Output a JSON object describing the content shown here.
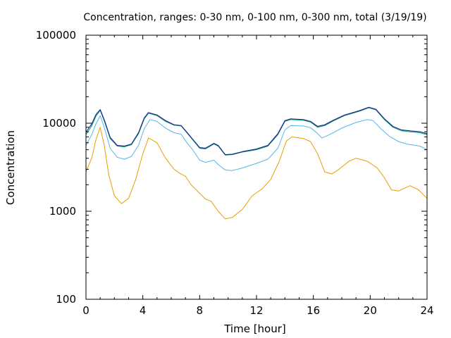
{
  "chart_data": {
    "type": "line",
    "title": "Concentration, ranges: 0-30 nm, 0-100 nm, 0-300 nm, total (3/19/19)",
    "xlabel": "Time [hour]",
    "ylabel": "Concentration",
    "xlim": [
      0,
      24
    ],
    "ylim": [
      100,
      100000
    ],
    "yscale": "log",
    "grid": false,
    "x_ticks": [
      "0",
      "4",
      "8",
      "12",
      "16",
      "20",
      "24"
    ],
    "y_ticks": [
      "100",
      "1000",
      "10000",
      "100000"
    ],
    "series": [
      {
        "color": "#e69f00",
        "points": [
          [
            0,
            2800
          ],
          [
            0.4,
            4000
          ],
          [
            0.7,
            6500
          ],
          [
            1.0,
            9000
          ],
          [
            1.3,
            5500
          ],
          [
            1.6,
            2600
          ],
          [
            2.0,
            1500
          ],
          [
            2.5,
            1220
          ],
          [
            3.0,
            1400
          ],
          [
            3.5,
            2300
          ],
          [
            4.0,
            4500
          ],
          [
            4.4,
            6800
          ],
          [
            5.0,
            6000
          ],
          [
            5.6,
            4000
          ],
          [
            6.2,
            3000
          ],
          [
            6.6,
            2700
          ],
          [
            7.0,
            2500
          ],
          [
            7.4,
            2000
          ],
          [
            8.0,
            1600
          ],
          [
            8.4,
            1380
          ],
          [
            8.8,
            1300
          ],
          [
            9.3,
            1000
          ],
          [
            9.8,
            820
          ],
          [
            10.3,
            850
          ],
          [
            11.0,
            1050
          ],
          [
            11.7,
            1500
          ],
          [
            12.4,
            1800
          ],
          [
            13.0,
            2300
          ],
          [
            13.6,
            3700
          ],
          [
            14.1,
            6300
          ],
          [
            14.5,
            7000
          ],
          [
            15.3,
            6700
          ],
          [
            15.8,
            6200
          ],
          [
            16.3,
            4500
          ],
          [
            16.8,
            2800
          ],
          [
            17.3,
            2650
          ],
          [
            17.8,
            3000
          ],
          [
            18.5,
            3700
          ],
          [
            19.0,
            4000
          ],
          [
            19.8,
            3700
          ],
          [
            20.5,
            3100
          ],
          [
            21.0,
            2400
          ],
          [
            21.5,
            1750
          ],
          [
            22.0,
            1700
          ],
          [
            22.8,
            1950
          ],
          [
            23.4,
            1750
          ],
          [
            24,
            1400
          ]
        ]
      },
      {
        "color": "#56b4e9",
        "points": [
          [
            0,
            5600
          ],
          [
            0.4,
            7400
          ],
          [
            0.7,
            9800
          ],
          [
            1.0,
            12200
          ],
          [
            1.3,
            8800
          ],
          [
            1.7,
            5200
          ],
          [
            2.2,
            4100
          ],
          [
            2.7,
            3900
          ],
          [
            3.2,
            4200
          ],
          [
            3.7,
            5600
          ],
          [
            4.1,
            8700
          ],
          [
            4.5,
            11000
          ],
          [
            5.0,
            10500
          ],
          [
            5.6,
            8800
          ],
          [
            6.2,
            7800
          ],
          [
            6.7,
            7500
          ],
          [
            7.1,
            6000
          ],
          [
            7.5,
            5000
          ],
          [
            8.0,
            3800
          ],
          [
            8.4,
            3600
          ],
          [
            9.0,
            3800
          ],
          [
            9.3,
            3400
          ],
          [
            9.8,
            2950
          ],
          [
            10.3,
            2900
          ],
          [
            11.0,
            3100
          ],
          [
            12.0,
            3500
          ],
          [
            12.8,
            3900
          ],
          [
            13.5,
            5200
          ],
          [
            14.0,
            8400
          ],
          [
            14.4,
            9400
          ],
          [
            15.3,
            9300
          ],
          [
            15.8,
            8900
          ],
          [
            16.2,
            7900
          ],
          [
            16.6,
            6800
          ],
          [
            17.2,
            7500
          ],
          [
            18.0,
            8800
          ],
          [
            19.0,
            10200
          ],
          [
            19.8,
            11000
          ],
          [
            20.2,
            10700
          ],
          [
            20.8,
            8500
          ],
          [
            21.4,
            7000
          ],
          [
            22.0,
            6200
          ],
          [
            22.6,
            5800
          ],
          [
            23.5,
            5500
          ],
          [
            24,
            5000
          ]
        ]
      },
      {
        "color": "#009e73",
        "points": [
          [
            0,
            7400
          ],
          [
            0.4,
            9300
          ],
          [
            0.7,
            12000
          ],
          [
            1.0,
            14000
          ],
          [
            1.3,
            10500
          ],
          [
            1.7,
            6700
          ],
          [
            2.2,
            5500
          ],
          [
            2.7,
            5400
          ],
          [
            3.2,
            5700
          ],
          [
            3.7,
            7600
          ],
          [
            4.1,
            11200
          ],
          [
            4.4,
            13000
          ],
          [
            5.0,
            12200
          ],
          [
            5.6,
            10500
          ],
          [
            6.2,
            9500
          ],
          [
            6.7,
            9300
          ],
          [
            7.1,
            7800
          ],
          [
            7.5,
            6500
          ],
          [
            8.0,
            5200
          ],
          [
            8.4,
            5100
          ],
          [
            9.0,
            5800
          ],
          [
            9.3,
            5500
          ],
          [
            9.8,
            4350
          ],
          [
            10.3,
            4400
          ],
          [
            11.0,
            4700
          ],
          [
            12.0,
            5000
          ],
          [
            12.8,
            5500
          ],
          [
            13.5,
            7400
          ],
          [
            14.0,
            10500
          ],
          [
            14.4,
            11000
          ],
          [
            15.3,
            10800
          ],
          [
            15.8,
            10300
          ],
          [
            16.3,
            9000
          ],
          [
            16.8,
            9400
          ],
          [
            17.4,
            10600
          ],
          [
            18.2,
            12200
          ],
          [
            19.2,
            13600
          ],
          [
            19.9,
            15000
          ],
          [
            20.4,
            14200
          ],
          [
            21.0,
            11000
          ],
          [
            21.6,
            9000
          ],
          [
            22.2,
            8200
          ],
          [
            22.8,
            8000
          ],
          [
            23.5,
            7800
          ],
          [
            24,
            7400
          ]
        ]
      },
      {
        "color": "#1f2f8c",
        "points": [
          [
            0,
            7900
          ],
          [
            0.4,
            9800
          ],
          [
            0.7,
            12500
          ],
          [
            1.0,
            14300
          ],
          [
            1.3,
            10800
          ],
          [
            1.7,
            6900
          ],
          [
            2.2,
            5600
          ],
          [
            2.7,
            5500
          ],
          [
            3.2,
            5800
          ],
          [
            3.7,
            7800
          ],
          [
            4.1,
            11500
          ],
          [
            4.4,
            13200
          ],
          [
            5.0,
            12400
          ],
          [
            5.6,
            10700
          ],
          [
            6.2,
            9600
          ],
          [
            6.7,
            9400
          ],
          [
            7.1,
            7900
          ],
          [
            7.5,
            6600
          ],
          [
            8.0,
            5300
          ],
          [
            8.4,
            5200
          ],
          [
            9.0,
            5900
          ],
          [
            9.3,
            5600
          ],
          [
            9.8,
            4400
          ],
          [
            10.3,
            4450
          ],
          [
            11.0,
            4750
          ],
          [
            12.0,
            5100
          ],
          [
            12.8,
            5600
          ],
          [
            13.5,
            7600
          ],
          [
            14.0,
            10700
          ],
          [
            14.4,
            11200
          ],
          [
            15.3,
            11000
          ],
          [
            15.8,
            10500
          ],
          [
            16.3,
            9200
          ],
          [
            16.8,
            9600
          ],
          [
            17.4,
            10800
          ],
          [
            18.2,
            12400
          ],
          [
            19.2,
            13800
          ],
          [
            19.9,
            15200
          ],
          [
            20.4,
            14400
          ],
          [
            21.0,
            11200
          ],
          [
            21.6,
            9200
          ],
          [
            22.2,
            8400
          ],
          [
            22.8,
            8200
          ],
          [
            23.5,
            8000
          ],
          [
            24,
            7600
          ]
        ]
      }
    ]
  }
}
